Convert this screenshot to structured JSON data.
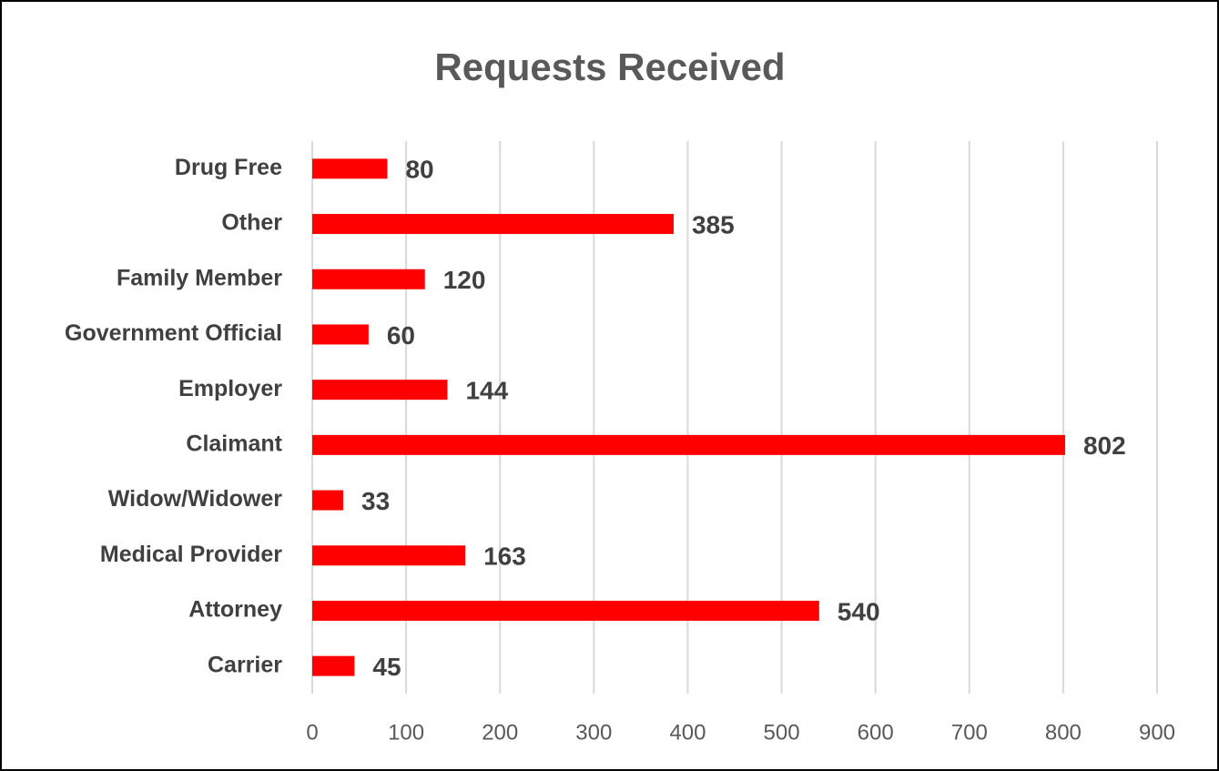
{
  "chart_data": {
    "type": "barh",
    "title": "Requests Received",
    "categories": [
      "Drug Free",
      "Other",
      "Family Member",
      "Government Official",
      "Employer",
      "Claimant",
      "Widow/Widower",
      "Medical Provider",
      "Attorney",
      "Carrier"
    ],
    "values": [
      80,
      385,
      120,
      60,
      144,
      802,
      33,
      163,
      540,
      45
    ],
    "color": "#ff0000",
    "xlim": [
      0,
      900
    ],
    "xticks": [
      0,
      100,
      200,
      300,
      400,
      500,
      600,
      700,
      800,
      900
    ],
    "grid": true
  }
}
